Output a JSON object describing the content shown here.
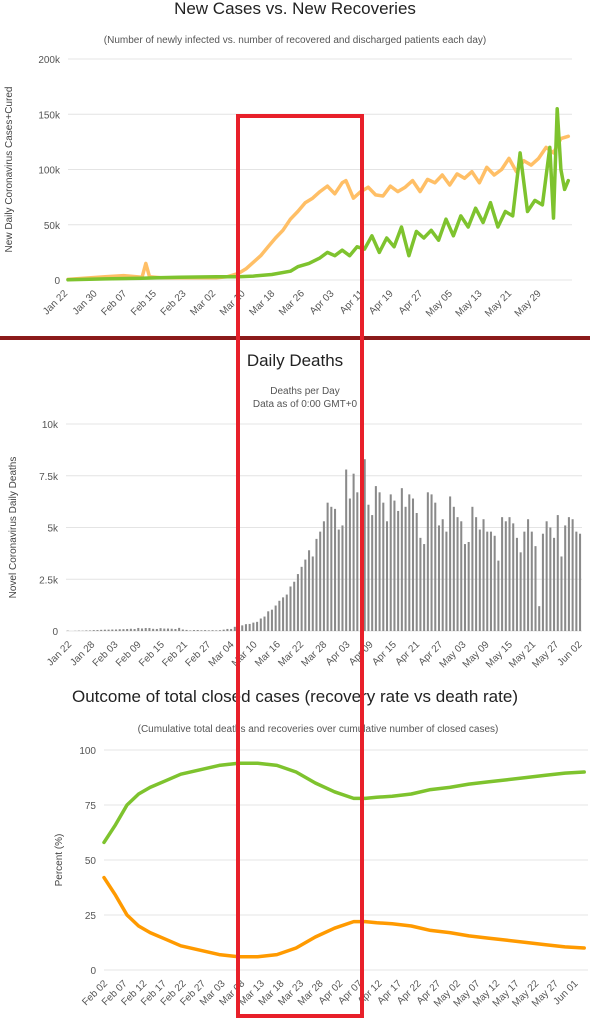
{
  "chart_data": [
    {
      "type": "line",
      "title": "New Cases vs. New Recoveries",
      "subtitle": "(Number of newly infected vs. number of recovered and discharged patients each day)",
      "ylabel": "New Daily Coronavirus Cases+Cured",
      "ylim": [
        0,
        200000
      ],
      "yticks": [
        "0",
        "50k",
        "100k",
        "150k",
        "200k"
      ],
      "xticks": [
        "Jan 22",
        "Jan 30",
        "Feb 07",
        "Feb 15",
        "Feb 23",
        "Mar 02",
        "Mar 10",
        "Mar 18",
        "Mar 26",
        "Apr 03",
        "Apr 11",
        "Apr 19",
        "Apr 27",
        "May 05",
        "May 13",
        "May 21",
        "May 29"
      ],
      "day_count": 136,
      "colors": {
        "new_cases": "#ffbf66",
        "new_recoveries": "#7ec32e"
      },
      "series": [
        {
          "key": "new_cases",
          "x": [
            0,
            10,
            15,
            20,
            21,
            22,
            25,
            30,
            35,
            40,
            43,
            46,
            48,
            50,
            52,
            54,
            56,
            58,
            60,
            62,
            64,
            66,
            68,
            70,
            72,
            74,
            75,
            77,
            79,
            81,
            83,
            85,
            87,
            89,
            91,
            93,
            95,
            97,
            99,
            101,
            103,
            105,
            107,
            109,
            111,
            113,
            115,
            117,
            119,
            121,
            123,
            125,
            127,
            129,
            131,
            133,
            135
          ],
          "y": [
            500,
            3000,
            4000,
            2500,
            15000,
            3000,
            2000,
            2000,
            2000,
            2000,
            3000,
            6000,
            10000,
            16000,
            22000,
            30000,
            38000,
            45000,
            55000,
            62000,
            70000,
            74000,
            80000,
            85000,
            78000,
            88000,
            90000,
            74000,
            80000,
            84000,
            77000,
            76000,
            85000,
            80000,
            84000,
            90000,
            80000,
            91000,
            88000,
            95000,
            86000,
            96000,
            92000,
            98000,
            88000,
            102000,
            95000,
            100000,
            110000,
            98000,
            108000,
            104000,
            110000,
            120000,
            115000,
            128000,
            130000
          ]
        },
        {
          "key": "new_recoveries",
          "x": [
            0,
            10,
            20,
            24,
            30,
            40,
            46,
            50,
            55,
            60,
            62,
            65,
            68,
            70,
            72,
            74,
            76,
            78,
            80,
            82,
            84,
            86,
            88,
            90,
            92,
            94,
            96,
            98,
            100,
            102,
            104,
            106,
            108,
            110,
            112,
            114,
            116,
            118,
            120,
            122,
            124,
            126,
            128,
            130,
            131,
            132,
            133,
            134,
            135
          ],
          "y": [
            200,
            1000,
            1500,
            2000,
            2500,
            3000,
            3000,
            3500,
            5000,
            8000,
            12000,
            15000,
            20000,
            25000,
            22000,
            27000,
            22000,
            30000,
            28000,
            40000,
            25000,
            38000,
            30000,
            48000,
            22000,
            44000,
            38000,
            45000,
            36000,
            55000,
            40000,
            58000,
            48000,
            65000,
            52000,
            70000,
            48000,
            62000,
            58000,
            115000,
            62000,
            72000,
            68000,
            120000,
            56000,
            155000,
            100000,
            82000,
            90000
          ]
        }
      ]
    },
    {
      "type": "bar",
      "title": "Daily Deaths",
      "subtitle_lines": [
        "Deaths per Day",
        "Data as of 0:00 GMT+0"
      ],
      "ylabel": "Novel Coronavirus Daily Deaths",
      "ylim": [
        0,
        10000
      ],
      "yticks": [
        "0",
        "2.5k",
        "5k",
        "7.5k",
        "10k"
      ],
      "xticks": [
        "Jan 22",
        "Jan 28",
        "Feb 03",
        "Feb 09",
        "Feb 15",
        "Feb 21",
        "Feb 27",
        "Mar 04",
        "Mar 10",
        "Mar 16",
        "Mar 22",
        "Mar 28",
        "Apr 03",
        "Apr 09",
        "Apr 15",
        "Apr 21",
        "Apr 27",
        "May 03",
        "May 09",
        "May 15",
        "May 21",
        "May 27",
        "Jun 02"
      ],
      "bar_color": "#8a8a8a",
      "values": [
        17,
        0,
        8,
        16,
        14,
        26,
        26,
        42,
        46,
        57,
        64,
        66,
        72,
        73,
        86,
        89,
        97,
        108,
        97,
        146,
        121,
        143,
        142,
        105,
        98,
        136,
        116,
        118,
        109,
        97,
        150,
        71,
        52,
        29,
        44,
        47,
        35,
        42,
        31,
        38,
        31,
        37,
        65,
        99,
        98,
        202,
        224,
        272,
        330,
        341,
        405,
        442,
        603,
        698,
        950,
        1030,
        1230,
        1460,
        1625,
        1760,
        2150,
        2380,
        2750,
        3100,
        3450,
        3900,
        3600,
        4450,
        4800,
        5300,
        6200,
        6000,
        5900,
        4900,
        5100,
        7800,
        6400,
        7600,
        6700,
        8100,
        8300,
        6100,
        5600,
        7000,
        6700,
        6200,
        5300,
        6600,
        6300,
        5800,
        6900,
        6000,
        6600,
        6400,
        5700,
        4500,
        4200,
        6700,
        6600,
        6200,
        5100,
        5400,
        4800,
        6500,
        6000,
        5500,
        5300,
        4200,
        4300,
        6000,
        5500,
        4900,
        5400,
        4800,
        4800,
        4600,
        3400,
        5500,
        5300,
        5500,
        5200,
        4500,
        3800,
        4800,
        5400,
        4800,
        4100,
        1200,
        4700,
        5300,
        5000,
        4500,
        5600,
        3600,
        5100,
        5500,
        5400,
        4800,
        4700
      ]
    },
    {
      "type": "line",
      "title": "Outcome of total closed cases (recovery rate vs death rate)",
      "subtitle": "(Cumulative total deaths and recoveries over cumulative number of closed cases)",
      "ylabel": "Percent (%)",
      "ylim": [
        0,
        100
      ],
      "yticks": [
        "0",
        "25",
        "50",
        "75",
        "100"
      ],
      "xticks": [
        "Feb 02",
        "Feb 07",
        "Feb 12",
        "Feb 17",
        "Feb 22",
        "Feb 27",
        "Mar 03",
        "Mar 08",
        "Mar 13",
        "Mar 18",
        "Mar 23",
        "Mar 28",
        "Apr 02",
        "Apr 07",
        "Apr 12",
        "Apr 17",
        "Apr 22",
        "Apr 27",
        "May 02",
        "May 07",
        "May 12",
        "May 17",
        "May 22",
        "May 27",
        "Jun 01"
      ],
      "day_count": 126,
      "colors": {
        "recovery": "#7ec32e",
        "death": "#ff9a00"
      },
      "series": [
        {
          "key": "recovery",
          "x": [
            0,
            3,
            6,
            9,
            12,
            16,
            20,
            25,
            30,
            35,
            40,
            45,
            50,
            55,
            60,
            65,
            68,
            71,
            75,
            80,
            85,
            90,
            95,
            100,
            105,
            110,
            115,
            120,
            125
          ],
          "y": [
            58,
            66,
            75,
            80,
            83,
            86,
            89,
            91,
            93,
            94,
            94,
            93,
            90,
            85,
            81,
            78,
            78,
            78.5,
            79,
            80,
            82,
            83,
            84.5,
            85.5,
            86.5,
            87.5,
            88.5,
            89.5,
            90
          ]
        },
        {
          "key": "death",
          "x": [
            0,
            3,
            6,
            9,
            12,
            16,
            20,
            25,
            30,
            35,
            40,
            45,
            50,
            55,
            60,
            65,
            68,
            71,
            75,
            80,
            85,
            90,
            95,
            100,
            105,
            110,
            115,
            120,
            125
          ],
          "y": [
            42,
            34,
            25,
            20,
            17,
            14,
            11,
            9,
            7,
            6,
            6,
            7,
            10,
            15,
            19,
            22,
            22,
            21.5,
            21,
            20,
            18,
            17,
            15.5,
            14.5,
            13.5,
            12.5,
            11.5,
            10.5,
            10
          ]
        }
      ]
    }
  ]
}
